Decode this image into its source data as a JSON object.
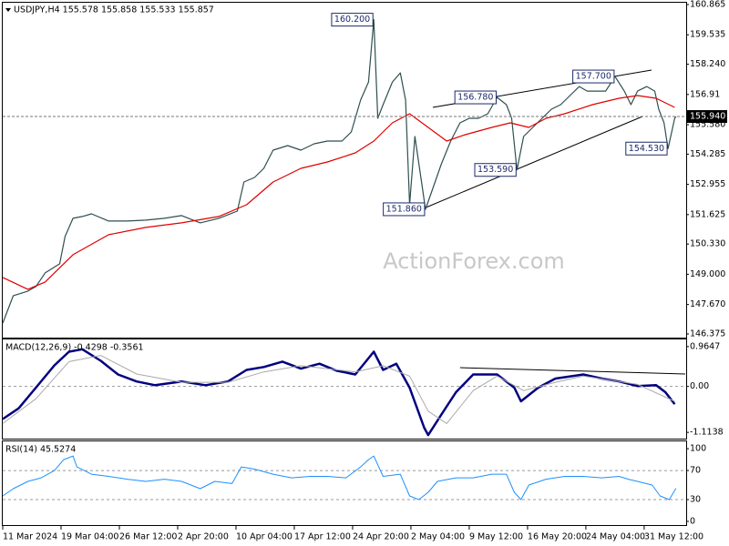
{
  "chart_data": [
    {
      "type": "line",
      "title": "USDJPY,H4  155.578 155.858 155.533 155.857",
      "watermark": "ActionForex.com",
      "xlim": [
        0,
        515
      ],
      "ylim": [
        146.254,
        160.945
      ],
      "yticks": [
        160.865,
        159.535,
        {
          "value": 158.24,
          "label": "158.240"
        },
        156.91,
        {
          "value": 155.58,
          "label": "155.580"
        },
        154.285,
        152.955,
        151.625,
        {
          "value": 150.33,
          "label": "150.330"
        },
        {
          "value": 149,
          "label": "149.000"
        },
        {
          "value": 147.67,
          "label": "147.670"
        },
        146.375
      ],
      "series": [
        {
          "color": "#2f4f4f",
          "x": [
            0,
            8,
            19,
            25,
            32,
            43,
            47,
            53,
            60,
            67,
            80,
            94,
            108,
            122,
            135,
            149,
            163,
            177,
            182,
            190,
            197,
            204,
            215,
            225,
            235,
            245,
            256,
            263,
            270,
            276,
            280,
            283,
            287,
            294,
            300,
            304,
            307,
            311,
            316,
            319,
            325,
            331,
            338,
            345,
            352,
            359,
            366,
            373,
            380,
            384,
            388,
            393,
            400,
            407,
            414,
            421,
            428,
            435,
            441,
            448,
            455,
            462,
            469,
            474,
            479,
            486,
            492,
            495,
            499,
            502,
            507,
            508
          ],
          "values": [
            146.85,
            148.06,
            148.26,
            148.46,
            149.06,
            149.46,
            150.66,
            151.46,
            151.54,
            151.66,
            151.34,
            151.34,
            151.38,
            151.46,
            151.58,
            151.26,
            151.46,
            151.78,
            153.06,
            153.26,
            153.66,
            154.46,
            154.66,
            154.46,
            154.74,
            154.86,
            154.86,
            155.26,
            156.66,
            157.46,
            160.2,
            155.86,
            156.46,
            157.46,
            157.86,
            156.66,
            152.06,
            155.06,
            153.06,
            151.86,
            152.86,
            153.86,
            154.86,
            155.66,
            155.86,
            155.86,
            156.06,
            156.78,
            156.46,
            155.86,
            153.59,
            155.06,
            155.46,
            155.86,
            156.26,
            156.46,
            156.86,
            157.26,
            157.06,
            157.06,
            157.06,
            157.7,
            157.06,
            156.46,
            157.06,
            157.26,
            157.06,
            156.26,
            155.66,
            154.53,
            155.86,
            155.94
          ]
        },
        {
          "color": "#e00000",
          "x": [
            0,
            19,
            32,
            53,
            80,
            108,
            135,
            163,
            184,
            204,
            225,
            245,
            266,
            280,
            294,
            307,
            321,
            335,
            349,
            369,
            383,
            397,
            410,
            424,
            445,
            465,
            479,
            493,
            507
          ],
          "values": [
            148.86,
            148.34,
            148.66,
            149.86,
            150.74,
            151.06,
            151.26,
            151.54,
            152.06,
            153.06,
            153.66,
            153.94,
            154.34,
            154.86,
            155.66,
            156.06,
            155.46,
            154.86,
            155.14,
            155.46,
            155.66,
            155.46,
            155.86,
            156.06,
            156.46,
            156.74,
            156.86,
            156.74,
            156.34
          ]
        }
      ],
      "annotations": [
        {
          "x": 280,
          "value": 160.2,
          "label": "160.200"
        },
        {
          "x": 373,
          "value": 156.78,
          "label": "156.780"
        },
        {
          "x": 462,
          "value": 157.7,
          "label": "157.700"
        },
        {
          "x": 319,
          "value": 151.86,
          "label": "151.860"
        },
        {
          "x": 388,
          "value": 153.59,
          "label": "153.590"
        },
        {
          "x": 502,
          "value": 154.53,
          "label": "154.530"
        }
      ],
      "last_price": {
        "value": 155.94,
        "label": "155.940"
      }
    },
    {
      "type": "line",
      "title": "MACD(12,26,9) -0.4298 -0.3561",
      "xlim": [
        0,
        515
      ],
      "ylim": [
        -1.265,
        1.116
      ],
      "yticks": [
        0.9647,
        {
          "value": 0,
          "label": "0.00"
        },
        -1.1138
      ],
      "levels": [
        0
      ],
      "series": [
        {
          "color": "#000080",
          "width": 2.5,
          "x": [
            0,
            12,
            25,
            39,
            50,
            60,
            74,
            87,
            101,
            115,
            135,
            153,
            170,
            184,
            197,
            211,
            225,
            239,
            252,
            266,
            280,
            287,
            297,
            307,
            318,
            321,
            331,
            342,
            355,
            373,
            386,
            391,
            404,
            417,
            438,
            452,
            465,
            479,
            493,
            500,
            507
          ],
          "values": [
            -0.79,
            -0.53,
            -0.03,
            0.51,
            0.84,
            0.9,
            0.62,
            0.29,
            0.12,
            0.03,
            0.12,
            0.03,
            0.12,
            0.4,
            0.47,
            0.6,
            0.43,
            0.55,
            0.38,
            0.29,
            0.84,
            0.4,
            0.55,
            -0.03,
            -1.0,
            -1.18,
            -0.68,
            -0.14,
            0.29,
            0.29,
            -0.03,
            -0.36,
            -0.03,
            0.19,
            0.29,
            0.19,
            0.12,
            0.01,
            0.03,
            -0.14,
            -0.43
          ]
        },
        {
          "color": "#a9a9a9",
          "width": 1,
          "x": [
            0,
            25,
            50,
            74,
            101,
            135,
            170,
            197,
            225,
            266,
            287,
            307,
            321,
            335,
            355,
            373,
            393,
            417,
            438,
            479,
            507
          ],
          "values": [
            -0.9,
            -0.3,
            0.6,
            0.75,
            0.3,
            0.1,
            0.1,
            0.35,
            0.5,
            0.35,
            0.5,
            0.25,
            -0.6,
            -0.9,
            -0.1,
            0.25,
            -0.1,
            0.1,
            0.25,
            0.05,
            -0.36
          ]
        }
      ]
    },
    {
      "type": "line",
      "title": "RSI(14) 45.5274",
      "xlim": [
        0,
        515
      ],
      "ylim": [
        -3.8,
        108.9
      ],
      "yticks": [
        100,
        70,
        30,
        0
      ],
      "levels": [
        70,
        30
      ],
      "series": [
        {
          "color": "#1e90ff",
          "width": 1,
          "x": [
            0,
            8,
            19,
            29,
            39,
            46,
            53,
            56,
            67,
            80,
            94,
            108,
            122,
            135,
            149,
            160,
            173,
            180,
            190,
            204,
            218,
            232,
            245,
            259,
            270,
            276,
            280,
            287,
            300,
            307,
            314,
            321,
            328,
            342,
            355,
            369,
            380,
            386,
            391,
            397,
            410,
            424,
            438,
            452,
            465,
            472,
            479,
            490,
            496,
            503,
            508
          ],
          "values": [
            35,
            45,
            55,
            60,
            70,
            85,
            90,
            75,
            65,
            62,
            58,
            55,
            58,
            55,
            45,
            55,
            52,
            75,
            72,
            65,
            60,
            62,
            62,
            60,
            75,
            85,
            90,
            62,
            65,
            35,
            30,
            40,
            55,
            60,
            60,
            65,
            65,
            40,
            30,
            50,
            58,
            62,
            62,
            60,
            62,
            58,
            55,
            50,
            35,
            30,
            45.5
          ]
        }
      ],
      "xticks": [
        {
          "value": 0,
          "label": "11 Mar 2024"
        },
        {
          "value": 44,
          "label": "19 Mar 04:00"
        },
        {
          "value": 88,
          "label": "26 Mar 12:00"
        },
        {
          "value": 132,
          "label": "2 Apr 20:00"
        },
        {
          "value": 176,
          "label": "10 Apr 04:00"
        },
        {
          "value": 220,
          "label": "17 Apr 12:00"
        },
        {
          "value": 264,
          "label": "24 Apr 20:00"
        },
        {
          "value": 308,
          "label": "2 May 04:00"
        },
        {
          "value": 352,
          "label": "9 May 12:00"
        },
        {
          "value": 396,
          "label": "16 May 20:00"
        },
        {
          "value": 440,
          "label": "24 May 04:00"
        },
        {
          "value": 484,
          "label": "31 May 12:00"
        }
      ]
    }
  ]
}
